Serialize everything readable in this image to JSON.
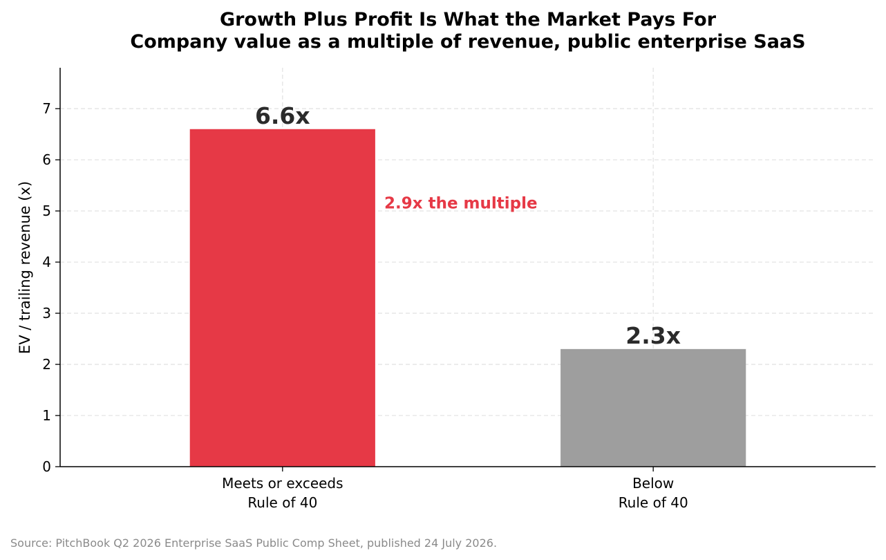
{
  "chart_data": {
    "type": "bar",
    "title": "Growth Plus Profit Is What the Market Pays For",
    "subtitle": "Company value as a multiple of revenue, public enterprise SaaS",
    "categories": [
      [
        "Meets or exceeds",
        "Rule of 40"
      ],
      [
        "Below",
        "Rule of 40"
      ]
    ],
    "values": [
      6.6,
      2.3
    ],
    "value_labels": [
      "6.6x",
      "2.3x"
    ],
    "bar_colors": [
      "#e63946",
      "#9e9e9e"
    ],
    "xlabel": "",
    "ylabel": "EV / trailing revenue (x)",
    "ylim": [
      0,
      7.8
    ],
    "yticks": [
      0,
      1,
      2,
      3,
      4,
      5,
      6,
      7
    ],
    "grid": true,
    "annotation": {
      "text": "2.9x the multiple",
      "color": "#e63946",
      "y": 5.05
    },
    "source": "Source: PitchBook Q2 2026 Enterprise SaaS Public Comp Sheet, published 24 July 2026."
  }
}
